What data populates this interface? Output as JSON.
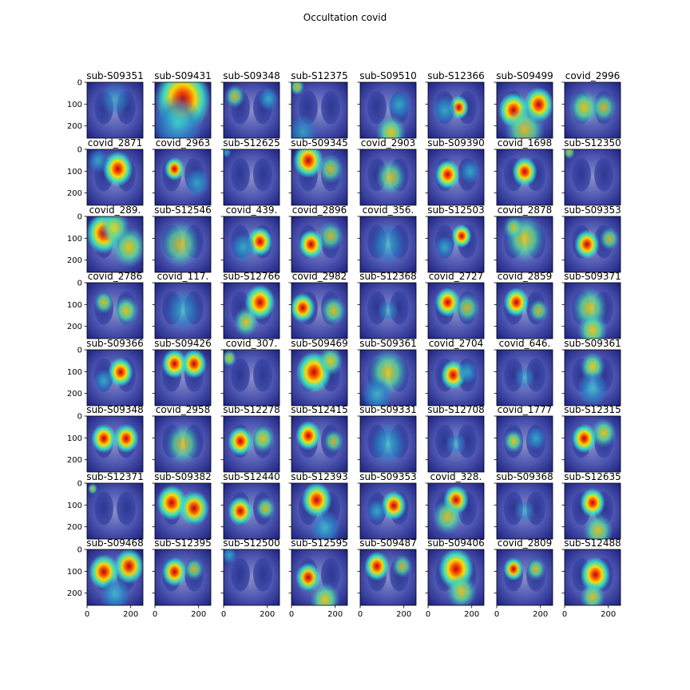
{
  "figure": {
    "title": "Occultation covid"
  },
  "chart_data": {
    "type": "heatmap",
    "title": "Occultation covid",
    "grid": false,
    "rows": 8,
    "cols": 8,
    "image_extent": [
      0,
      256
    ],
    "yticks": [
      0,
      100,
      200
    ],
    "xticks": [
      0,
      200
    ],
    "colormap": "jet overlay on chest x-ray",
    "panels": [
      {
        "title": "sub-S09351",
        "hot": [
          [
            0.5,
            0.3,
            0.3,
            0.1
          ]
        ]
      },
      {
        "title": "sub-S09431",
        "hot": [
          [
            0.5,
            0.3,
            0.55,
            0.9
          ],
          [
            0.4,
            0.75,
            0.5,
            0.5
          ]
        ]
      },
      {
        "title": "sub-S09348",
        "hot": [
          [
            0.2,
            0.25,
            0.2,
            0.6
          ],
          [
            0.8,
            0.3,
            0.2,
            0.5
          ]
        ]
      },
      {
        "title": "sub-S12375",
        "hot": [
          [
            0.1,
            0.08,
            0.15,
            0.7
          ],
          [
            0.2,
            0.9,
            0.3,
            0.3
          ]
        ]
      },
      {
        "title": "sub-S09510",
        "hot": [
          [
            0.55,
            0.9,
            0.3,
            0.8
          ],
          [
            0.7,
            0.4,
            0.25,
            0.5
          ]
        ]
      },
      {
        "title": "sub-S12366",
        "hot": [
          [
            0.55,
            0.45,
            0.2,
            0.85
          ],
          [
            0.3,
            0.5,
            0.25,
            0.5
          ]
        ]
      },
      {
        "title": "sub-S09499",
        "hot": [
          [
            0.3,
            0.5,
            0.3,
            0.95
          ],
          [
            0.75,
            0.4,
            0.3,
            0.9
          ],
          [
            0.5,
            0.85,
            0.4,
            0.6
          ]
        ]
      },
      {
        "title": "covid_2996",
        "hot": [
          [
            0.35,
            0.45,
            0.3,
            0.8
          ],
          [
            0.7,
            0.45,
            0.25,
            0.6
          ]
        ]
      },
      {
        "title": "covid_2871",
        "hot": [
          [
            0.55,
            0.35,
            0.3,
            0.95
          ],
          [
            0.2,
            0.2,
            0.2,
            0.4
          ]
        ]
      },
      {
        "title": "covid_2963",
        "hot": [
          [
            0.35,
            0.35,
            0.2,
            0.85
          ],
          [
            0.75,
            0.6,
            0.25,
            0.4
          ]
        ]
      },
      {
        "title": "sub-S12625",
        "hot": [
          [
            0.05,
            0.05,
            0.1,
            0.5
          ]
        ]
      },
      {
        "title": "sub-S09345",
        "hot": [
          [
            0.3,
            0.2,
            0.3,
            0.9
          ],
          [
            0.7,
            0.35,
            0.25,
            0.6
          ]
        ]
      },
      {
        "title": "covid_2903",
        "hot": [
          [
            0.55,
            0.5,
            0.3,
            0.6
          ]
        ]
      },
      {
        "title": "sub-S09390",
        "hot": [
          [
            0.35,
            0.45,
            0.25,
            0.95
          ],
          [
            0.75,
            0.4,
            0.2,
            0.5
          ]
        ]
      },
      {
        "title": "covid_1698",
        "hot": [
          [
            0.5,
            0.4,
            0.25,
            0.9
          ]
        ]
      },
      {
        "title": "sub-S12350",
        "hot": [
          [
            0.08,
            0.05,
            0.12,
            0.6
          ]
        ]
      },
      {
        "title": "covid_289.",
        "hot": [
          [
            0.3,
            0.3,
            0.35,
            0.9
          ],
          [
            0.75,
            0.55,
            0.35,
            0.8
          ],
          [
            0.5,
            0.2,
            0.3,
            0.7
          ]
        ]
      },
      {
        "title": "sub-S12546",
        "hot": [
          [
            0.45,
            0.5,
            0.4,
            0.55
          ]
        ]
      },
      {
        "title": "covid_439.",
        "hot": [
          [
            0.65,
            0.45,
            0.25,
            0.95
          ],
          [
            0.35,
            0.55,
            0.25,
            0.5
          ]
        ]
      },
      {
        "title": "covid_2896",
        "hot": [
          [
            0.35,
            0.5,
            0.25,
            0.95
          ],
          [
            0.7,
            0.35,
            0.25,
            0.6
          ]
        ]
      },
      {
        "title": "covid_356.",
        "hot": [
          [
            0.5,
            0.5,
            0.35,
            0.35
          ]
        ]
      },
      {
        "title": "sub-S12503",
        "hot": [
          [
            0.6,
            0.35,
            0.2,
            0.95
          ],
          [
            0.3,
            0.55,
            0.2,
            0.5
          ]
        ]
      },
      {
        "title": "covid_2878",
        "hot": [
          [
            0.5,
            0.4,
            0.4,
            0.7
          ],
          [
            0.3,
            0.2,
            0.2,
            0.6
          ]
        ]
      },
      {
        "title": "sub-S09353",
        "hot": [
          [
            0.4,
            0.5,
            0.25,
            0.9
          ],
          [
            0.8,
            0.4,
            0.2,
            0.6
          ]
        ]
      },
      {
        "title": "covid_2786",
        "hot": [
          [
            0.3,
            0.35,
            0.2,
            0.7
          ],
          [
            0.7,
            0.5,
            0.25,
            0.8
          ]
        ]
      },
      {
        "title": "covid_117.",
        "hot": [
          [
            0.5,
            0.5,
            0.35,
            0.35
          ]
        ]
      },
      {
        "title": "sub-S12766",
        "hot": [
          [
            0.65,
            0.35,
            0.3,
            0.95
          ],
          [
            0.4,
            0.7,
            0.25,
            0.7
          ]
        ]
      },
      {
        "title": "covid_2982",
        "hot": [
          [
            0.2,
            0.45,
            0.25,
            0.9
          ],
          [
            0.75,
            0.5,
            0.25,
            0.7
          ]
        ]
      },
      {
        "title": "sub-S12368",
        "hot": [
          [
            0.5,
            0.5,
            0.2,
            0.2
          ]
        ]
      },
      {
        "title": "covid_2727",
        "hot": [
          [
            0.35,
            0.35,
            0.25,
            0.95
          ],
          [
            0.7,
            0.45,
            0.25,
            0.6
          ]
        ]
      },
      {
        "title": "covid_2859",
        "hot": [
          [
            0.35,
            0.35,
            0.25,
            0.95
          ],
          [
            0.75,
            0.5,
            0.2,
            0.6
          ]
        ]
      },
      {
        "title": "sub-S09371",
        "hot": [
          [
            0.45,
            0.45,
            0.35,
            0.7
          ],
          [
            0.5,
            0.85,
            0.3,
            0.8
          ]
        ]
      },
      {
        "title": "sub-S09366",
        "hot": [
          [
            0.6,
            0.4,
            0.25,
            0.95
          ],
          [
            0.3,
            0.55,
            0.2,
            0.5
          ]
        ]
      },
      {
        "title": "sub-S09426",
        "hot": [
          [
            0.35,
            0.25,
            0.25,
            0.95
          ],
          [
            0.7,
            0.25,
            0.25,
            0.9
          ]
        ]
      },
      {
        "title": "covid_307.",
        "hot": [
          [
            0.1,
            0.15,
            0.15,
            0.7
          ]
        ]
      },
      {
        "title": "sub-S09469",
        "hot": [
          [
            0.4,
            0.4,
            0.35,
            0.95
          ],
          [
            0.7,
            0.2,
            0.25,
            0.8
          ]
        ]
      },
      {
        "title": "sub-S09361",
        "hot": [
          [
            0.5,
            0.4,
            0.4,
            0.7
          ],
          [
            0.3,
            0.8,
            0.3,
            0.5
          ]
        ]
      },
      {
        "title": "covid_2704",
        "hot": [
          [
            0.45,
            0.45,
            0.25,
            0.9
          ],
          [
            0.7,
            0.4,
            0.2,
            0.5
          ]
        ]
      },
      {
        "title": "covid_646.",
        "hot": [
          [
            0.5,
            0.5,
            0.2,
            0.15
          ]
        ]
      },
      {
        "title": "sub-S09361",
        "hot": [
          [
            0.5,
            0.3,
            0.25,
            0.8
          ],
          [
            0.5,
            0.7,
            0.3,
            0.5
          ]
        ]
      },
      {
        "title": "sub-S09348",
        "hot": [
          [
            0.3,
            0.4,
            0.25,
            0.95
          ],
          [
            0.7,
            0.4,
            0.25,
            0.9
          ]
        ]
      },
      {
        "title": "covid_2958",
        "hot": [
          [
            0.5,
            0.5,
            0.35,
            0.55
          ]
        ]
      },
      {
        "title": "sub-S12278",
        "hot": [
          [
            0.3,
            0.45,
            0.25,
            0.95
          ],
          [
            0.7,
            0.4,
            0.25,
            0.8
          ]
        ]
      },
      {
        "title": "sub-S12415",
        "hot": [
          [
            0.3,
            0.35,
            0.25,
            0.95
          ],
          [
            0.75,
            0.45,
            0.2,
            0.6
          ]
        ]
      },
      {
        "title": "sub-S09331",
        "hot": [
          [
            0.5,
            0.5,
            0.35,
            0.5
          ]
        ]
      },
      {
        "title": "sub-S12708",
        "hot": [
          [
            0.5,
            0.5,
            0.2,
            0.2
          ]
        ]
      },
      {
        "title": "covid_1777",
        "hot": [
          [
            0.3,
            0.45,
            0.2,
            0.8
          ],
          [
            0.7,
            0.4,
            0.2,
            0.5
          ]
        ]
      },
      {
        "title": "sub-S12315",
        "hot": [
          [
            0.35,
            0.4,
            0.25,
            0.95
          ],
          [
            0.7,
            0.3,
            0.25,
            0.8
          ]
        ]
      },
      {
        "title": "sub-S12371",
        "hot": [
          [
            0.1,
            0.1,
            0.1,
            0.6
          ]
        ]
      },
      {
        "title": "sub-S09382",
        "hot": [
          [
            0.3,
            0.35,
            0.3,
            0.95
          ],
          [
            0.7,
            0.45,
            0.3,
            0.85
          ]
        ]
      },
      {
        "title": "sub-S12440",
        "hot": [
          [
            0.3,
            0.5,
            0.25,
            0.9
          ],
          [
            0.75,
            0.45,
            0.2,
            0.7
          ]
        ]
      },
      {
        "title": "sub-S12393",
        "hot": [
          [
            0.45,
            0.3,
            0.3,
            0.9
          ],
          [
            0.6,
            0.8,
            0.3,
            0.5
          ]
        ]
      },
      {
        "title": "sub-S09353",
        "hot": [
          [
            0.6,
            0.4,
            0.25,
            0.9
          ],
          [
            0.3,
            0.5,
            0.2,
            0.5
          ]
        ]
      },
      {
        "title": "covid_328.",
        "hot": [
          [
            0.5,
            0.3,
            0.25,
            0.85
          ],
          [
            0.35,
            0.6,
            0.3,
            0.7
          ]
        ]
      },
      {
        "title": "sub-S09368",
        "hot": [
          [
            0.5,
            0.5,
            0.2,
            0.15
          ]
        ]
      },
      {
        "title": "sub-S12635",
        "hot": [
          [
            0.5,
            0.35,
            0.25,
            0.95
          ],
          [
            0.6,
            0.85,
            0.3,
            0.7
          ]
        ]
      },
      {
        "title": "sub-S09468",
        "hot": [
          [
            0.3,
            0.4,
            0.3,
            0.9
          ],
          [
            0.75,
            0.3,
            0.3,
            0.85
          ],
          [
            0.5,
            0.8,
            0.3,
            0.5
          ]
        ]
      },
      {
        "title": "sub-S12395",
        "hot": [
          [
            0.35,
            0.4,
            0.25,
            0.9
          ],
          [
            0.7,
            0.35,
            0.2,
            0.6
          ]
        ]
      },
      {
        "title": "sub-S12500",
        "hot": [
          [
            0.1,
            0.1,
            0.15,
            0.5
          ]
        ]
      },
      {
        "title": "sub-S12595",
        "hot": [
          [
            0.3,
            0.5,
            0.25,
            0.85
          ],
          [
            0.6,
            0.9,
            0.3,
            0.8
          ]
        ]
      },
      {
        "title": "sub-S09487",
        "hot": [
          [
            0.3,
            0.3,
            0.25,
            0.9
          ],
          [
            0.75,
            0.3,
            0.2,
            0.6
          ]
        ]
      },
      {
        "title": "sub-S09406",
        "hot": [
          [
            0.5,
            0.35,
            0.35,
            0.95
          ],
          [
            0.6,
            0.75,
            0.3,
            0.7
          ]
        ]
      },
      {
        "title": "covid_2809",
        "hot": [
          [
            0.3,
            0.35,
            0.2,
            0.85
          ],
          [
            0.7,
            0.35,
            0.2,
            0.7
          ]
        ]
      },
      {
        "title": "sub-S12488",
        "hot": [
          [
            0.55,
            0.45,
            0.3,
            0.95
          ],
          [
            0.5,
            0.85,
            0.25,
            0.7
          ]
        ]
      }
    ]
  }
}
